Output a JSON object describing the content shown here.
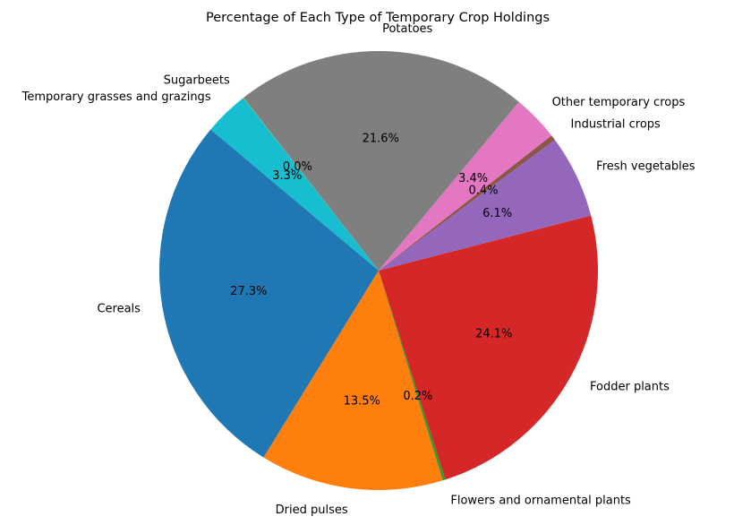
{
  "chart_data": {
    "type": "pie",
    "title": "Percentage of Each Type of Temporary Crop Holdings",
    "start_angle_deg": 140,
    "direction": "counterclockwise",
    "legend": "none",
    "slices": [
      {
        "label": "Cereals",
        "value": 27.3,
        "pct_label": "27.3%",
        "color": "#1f77b4"
      },
      {
        "label": "Dried pulses",
        "value": 13.5,
        "pct_label": "13.5%",
        "color": "#ff7f0e"
      },
      {
        "label": "Flowers and ornamental plants",
        "value": 0.2,
        "pct_label": "0.2%",
        "color": "#2ca02c"
      },
      {
        "label": "Fodder plants",
        "value": 24.1,
        "pct_label": "24.1%",
        "color": "#d62728"
      },
      {
        "label": "Fresh vegetables",
        "value": 6.1,
        "pct_label": "6.1%",
        "color": "#9467bd"
      },
      {
        "label": "Industrial crops",
        "value": 0.4,
        "pct_label": "0.4%",
        "color": "#8c564b"
      },
      {
        "label": "Other temporary crops",
        "value": 3.4,
        "pct_label": "3.4%",
        "color": "#e377c2"
      },
      {
        "label": "Potatoes",
        "value": 21.6,
        "pct_label": "21.6%",
        "color": "#7f7f7f"
      },
      {
        "label": "Sugarbeets",
        "value": 0.02,
        "pct_label": "0.0%",
        "color": "#bcbd22"
      },
      {
        "label": "Temporary grasses and grazings",
        "value": 3.3,
        "pct_label": "3.3%",
        "color": "#17becf"
      }
    ]
  }
}
